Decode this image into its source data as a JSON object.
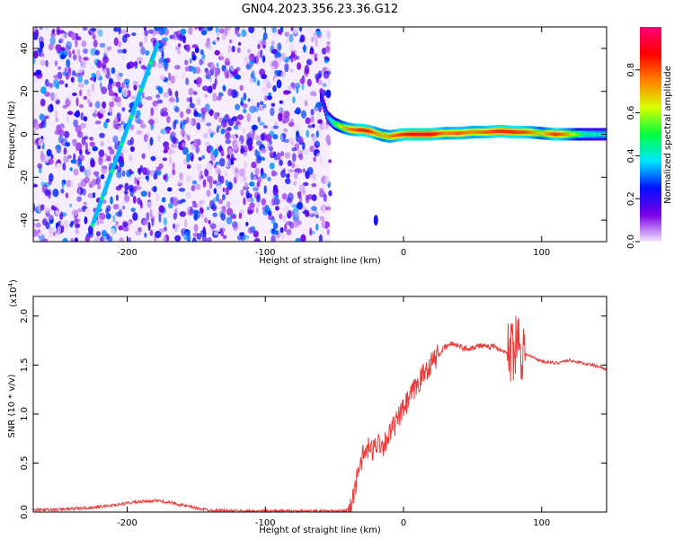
{
  "title": "GN04.2023.356.23.36.G12",
  "colors": {
    "snr_line": "#ee3a3a",
    "frame": "#000000",
    "colormap": [
      "#f2e6fa",
      "#7a00e6",
      "#0010ff",
      "#00e6ff",
      "#00ff40",
      "#d8ff00",
      "#ff8000",
      "#ff0000",
      "#ff007a"
    ]
  },
  "chart_data": [
    {
      "type": "heatmap",
      "name": "spectrogram",
      "xlabel": "Height of straight line (km)",
      "ylabel": "Frequency (Hz)",
      "xlim": [
        -268,
        147
      ],
      "ylim": [
        -50,
        50
      ],
      "xticks": [
        -200,
        -100,
        0,
        100
      ],
      "xtick_labels": [
        "-200",
        "-100",
        "0",
        "100"
      ],
      "yticks": [
        -40,
        -20,
        0,
        20,
        40
      ],
      "ytick_labels": [
        "-40",
        "-20",
        "0",
        "20",
        "40"
      ],
      "grid": false,
      "noise_region_x": [
        -268,
        -53
      ],
      "features": {
        "dispersive_track": {
          "x": [
            -225,
            -178
          ],
          "y": [
            -42,
            42
          ],
          "level": 0.35
        },
        "doppler_ridge": {
          "x": [
            -60,
            -55,
            -50,
            -45,
            -40,
            -35,
            -30,
            -25,
            -20,
            -15,
            -10,
            -5,
            0,
            10,
            20,
            30,
            40,
            50,
            60,
            70,
            80,
            90,
            100,
            110,
            120,
            130,
            147
          ],
          "y": [
            18,
            8,
            5,
            3.5,
            2.5,
            2,
            2,
            1.5,
            0.5,
            -0.5,
            -1,
            -0.5,
            0,
            0,
            0,
            0.5,
            0.5,
            1,
            1,
            1.5,
            1,
            1,
            0.5,
            0,
            0,
            0,
            0
          ],
          "level": [
            0.25,
            0.35,
            0.5,
            0.65,
            0.75,
            0.8,
            0.85,
            0.85,
            0.75,
            0.7,
            0.75,
            0.8,
            0.85,
            0.9,
            0.9,
            0.75,
            0.8,
            0.75,
            0.8,
            0.85,
            0.85,
            0.8,
            0.65,
            0.85,
            0.7,
            0.45,
            0.4
          ]
        },
        "isolated_blob": {
          "x": -20,
          "y": -40
        }
      }
    },
    {
      "type": "colorbar",
      "name": "amplitude-colorbar",
      "label": "Normalized spectral amplitude",
      "range": [
        0.0,
        1.0
      ],
      "ticks": [
        0.0,
        0.2,
        0.4,
        0.6,
        0.8
      ],
      "tick_labels": [
        "0.0",
        "0.2",
        "0.4",
        "0.6",
        "0.8"
      ]
    },
    {
      "type": "line",
      "name": "snr",
      "xlabel": "Height of straight line (km)",
      "ylabel": "SNR (10 * v/v)",
      "yscale_note": "(x10",
      "yscale_exp": "4",
      "yscale_close": ")",
      "xlim": [
        -268,
        147
      ],
      "ylim": [
        0,
        2.2
      ],
      "xticks": [
        -200,
        -100,
        0,
        100
      ],
      "xtick_labels": [
        "-200",
        "-100",
        "0",
        "100"
      ],
      "yticks": [
        0.0,
        0.5,
        1.0,
        1.5,
        2.0
      ],
      "ytick_labels": [
        "0.0",
        "0.5",
        "1.0",
        "1.5",
        "2.0"
      ],
      "grid": false,
      "series": [
        {
          "x": [
            -268,
            -250,
            -230,
            -210,
            -195,
            -185,
            -180,
            -170,
            -160,
            -150,
            -140,
            -120,
            -100,
            -80,
            -60,
            -50,
            -42,
            -38,
            -35,
            -32,
            -30,
            -28,
            -25,
            -22,
            -20,
            -18,
            -15,
            -12,
            -10,
            -8,
            -5,
            -2,
            0,
            3,
            6,
            10,
            15,
            20,
            25,
            30,
            35,
            40,
            45,
            50,
            55,
            60,
            65,
            70,
            75,
            78,
            80,
            82,
            85,
            88,
            90,
            95,
            100,
            110,
            120,
            130,
            140,
            147
          ],
          "y": [
            0.02,
            0.025,
            0.04,
            0.07,
            0.1,
            0.11,
            0.12,
            0.1,
            0.07,
            0.04,
            0.02,
            0.01,
            0.01,
            0.01,
            0.01,
            0.01,
            0.01,
            0.05,
            0.25,
            0.5,
            0.55,
            0.6,
            0.65,
            0.62,
            0.7,
            0.72,
            0.68,
            0.75,
            0.8,
            0.85,
            0.92,
            1.0,
            1.05,
            1.12,
            1.2,
            1.3,
            1.42,
            1.52,
            1.6,
            1.68,
            1.72,
            1.7,
            1.66,
            1.68,
            1.7,
            1.68,
            1.7,
            1.66,
            1.62,
            1.65,
            1.7,
            1.8,
            1.7,
            1.62,
            1.6,
            1.57,
            1.54,
            1.52,
            1.55,
            1.52,
            1.49,
            1.46
          ]
        }
      ]
    }
  ]
}
